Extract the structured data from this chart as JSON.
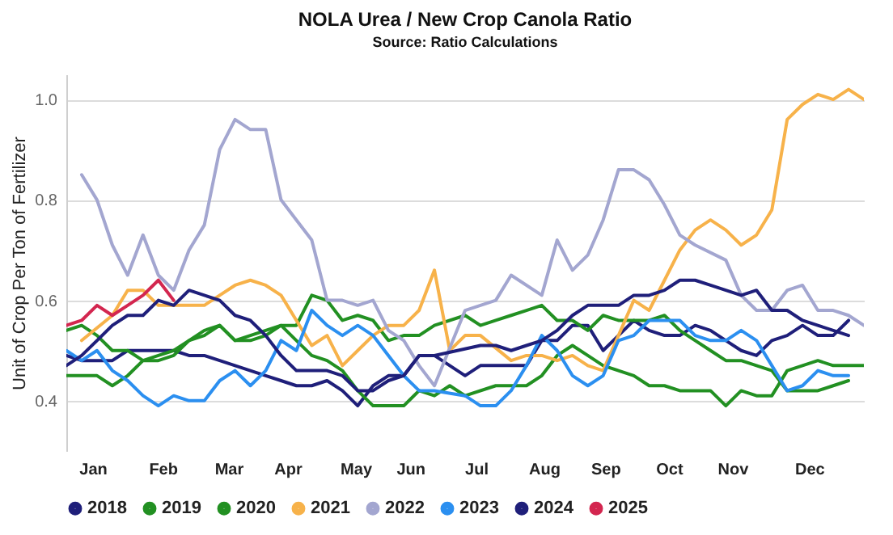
{
  "chart_data": {
    "type": "line",
    "title": "NOLA Urea / New Crop Canola Ratio",
    "subtitle": "Source: Ratio Calculations",
    "ylabel": "Unit of Crop Per Ton of Fertilizer",
    "xlim": [
      "--01-01",
      "--12-31"
    ],
    "ylim": [
      0.3,
      1.05
    ],
    "yticks": [
      0.4,
      0.6,
      0.8,
      {
        "value": 1,
        "label": "1.0"
      }
    ],
    "xticks": [
      {
        "value": "--01-13",
        "label": "Jan"
      },
      {
        "value": "--02-14",
        "label": "Feb"
      },
      {
        "value": "--03-16",
        "label": "Mar"
      },
      {
        "value": "--04-12",
        "label": "Apr"
      },
      {
        "value": "--05-13",
        "label": "May"
      },
      {
        "value": "--06-07",
        "label": "Jun"
      },
      {
        "value": "--07-07",
        "label": "Jul"
      },
      {
        "value": "--08-07",
        "label": "Aug"
      },
      {
        "value": "--09-04",
        "label": "Sep"
      },
      {
        "value": "--10-03",
        "label": "Oct"
      },
      {
        "value": "--11-01",
        "label": "Nov"
      },
      {
        "value": "--12-06",
        "label": "Dec"
      }
    ],
    "grid": "y",
    "legend": "bottom",
    "line_style": "solid",
    "series": [
      {
        "name": "2018",
        "color": "#1f1f7a",
        "x": [
          "--01-01",
          "--01-08",
          "--01-15",
          "--01-22",
          "--01-29",
          "--02-05",
          "--02-12",
          "--02-19",
          "--02-26",
          "--03-05",
          "--03-12",
          "--03-19",
          "--03-26",
          "--04-02",
          "--04-09",
          "--04-16",
          "--04-23",
          "--04-30",
          "--05-07",
          "--05-14",
          "--05-21",
          "--05-28",
          "--06-04",
          "--06-11",
          "--06-18",
          "--07-02",
          "--07-09",
          "--07-23",
          "--07-30",
          "--08-06",
          "--08-13",
          "--08-20",
          "--08-27",
          "--09-03",
          "--09-10",
          "--09-17",
          "--09-24",
          "--10-01",
          "--10-08",
          "--10-15",
          "--10-22",
          "--10-29",
          "--11-05",
          "--11-12",
          "--11-19",
          "--11-26",
          "--12-03",
          "--12-10",
          "--12-17",
          "--12-24"
        ],
        "values": [
          0.49,
          0.48,
          0.48,
          0.48,
          0.5,
          0.5,
          0.5,
          0.5,
          0.49,
          0.49,
          0.48,
          0.47,
          0.46,
          0.45,
          0.44,
          0.43,
          0.43,
          0.44,
          0.42,
          0.39,
          0.43,
          0.45,
          0.45,
          0.49,
          0.49,
          0.45,
          0.47,
          0.47,
          0.47,
          0.52,
          0.52,
          0.55,
          0.55,
          0.5,
          0.53,
          0.56,
          0.54,
          0.53,
          0.53,
          0.55,
          0.54,
          0.52,
          0.5,
          0.49,
          0.52,
          0.53,
          0.55,
          0.53,
          0.53,
          0.56
        ]
      },
      {
        "name": "2019",
        "color": "#229022",
        "x": [
          "--01-01",
          "--01-08",
          "--01-15",
          "--01-22",
          "--01-29",
          "--02-05",
          "--02-12",
          "--02-19",
          "--02-26",
          "--03-05",
          "--03-12",
          "--03-19",
          "--03-26",
          "--04-02",
          "--04-09",
          "--04-16",
          "--04-23",
          "--04-30",
          "--05-07",
          "--05-14",
          "--05-21",
          "--05-28",
          "--06-04",
          "--06-11",
          "--06-18",
          "--07-02",
          "--07-09",
          "--07-16",
          "--07-23",
          "--07-30",
          "--08-06",
          "--08-13",
          "--08-20",
          "--08-27",
          "--09-03",
          "--09-10",
          "--09-17",
          "--09-24",
          "--10-01",
          "--10-08",
          "--10-15",
          "--10-22",
          "--10-29",
          "--11-05",
          "--11-12",
          "--11-19",
          "--11-26",
          "--12-03",
          "--12-10",
          "--12-17",
          "--12-24"
        ],
        "values": [
          0.54,
          0.55,
          0.53,
          0.5,
          0.5,
          0.48,
          0.49,
          0.5,
          0.52,
          0.54,
          0.55,
          0.52,
          0.52,
          0.53,
          0.55,
          0.55,
          0.61,
          0.6,
          0.56,
          0.57,
          0.56,
          0.52,
          0.53,
          0.53,
          0.55,
          0.57,
          0.55,
          0.56,
          0.57,
          0.58,
          0.59,
          0.56,
          0.56,
          0.54,
          0.57,
          0.56,
          0.56,
          0.56,
          0.57,
          0.54,
          0.52,
          0.5,
          0.48,
          0.48,
          0.47,
          0.46,
          0.42,
          0.42,
          0.42,
          0.43,
          0.44
        ]
      },
      {
        "name": "2020",
        "color": "#229022",
        "x": [
          "--01-01",
          "--01-08",
          "--01-15",
          "--01-22",
          "--01-29",
          "--02-05",
          "--02-12",
          "--02-19",
          "--02-26",
          "--03-05",
          "--03-12",
          "--03-19",
          "--03-26",
          "--04-02",
          "--04-09",
          "--04-16",
          "--04-23",
          "--04-30",
          "--05-07",
          "--05-14",
          "--05-21",
          "--05-28",
          "--06-04",
          "--06-11",
          "--06-18",
          "--06-25",
          "--07-02",
          "--07-16",
          "--07-30",
          "--08-06",
          "--08-13",
          "--08-20",
          "--08-27",
          "--09-03",
          "--09-10",
          "--09-17",
          "--09-24",
          "--10-01",
          "--10-08",
          "--10-22",
          "--10-29",
          "--11-05",
          "--11-12",
          "--11-19",
          "--11-26",
          "--12-03",
          "--12-10",
          "--12-17",
          "--12-31"
        ],
        "values": [
          0.45,
          0.45,
          0.45,
          0.43,
          0.45,
          0.48,
          0.48,
          0.49,
          0.52,
          0.53,
          0.55,
          0.52,
          0.53,
          0.54,
          0.55,
          0.52,
          0.49,
          0.48,
          0.46,
          0.42,
          0.39,
          0.39,
          0.39,
          0.42,
          0.41,
          0.43,
          0.41,
          0.43,
          0.43,
          0.45,
          0.49,
          0.51,
          0.49,
          0.47,
          0.46,
          0.45,
          0.43,
          0.43,
          0.42,
          0.42,
          0.39,
          0.42,
          0.41,
          0.41,
          0.46,
          0.47,
          0.48,
          0.47,
          0.47
        ]
      },
      {
        "name": "2021",
        "color": "#f7b24a",
        "x": [
          "--01-08",
          "--01-22",
          "--01-29",
          "--02-05",
          "--02-12",
          "--02-19",
          "--03-05",
          "--03-12",
          "--03-19",
          "--03-26",
          "--04-02",
          "--04-09",
          "--04-16",
          "--04-23",
          "--04-30",
          "--05-07",
          "--05-14",
          "--05-21",
          "--05-28",
          "--06-04",
          "--06-11",
          "--06-18",
          "--06-25",
          "--07-02",
          "--07-09",
          "--07-23",
          "--07-30",
          "--08-06",
          "--08-13",
          "--08-20",
          "--08-27",
          "--09-03",
          "--09-10",
          "--09-17",
          "--09-24",
          "--10-01",
          "--10-08",
          "--10-15",
          "--10-22",
          "--10-29",
          "--11-05",
          "--11-12",
          "--11-19",
          "--11-26",
          "--12-03",
          "--12-10",
          "--12-17",
          "--12-24",
          "--12-31"
        ],
        "values": [
          0.52,
          0.57,
          0.62,
          0.62,
          0.59,
          0.59,
          0.59,
          0.61,
          0.63,
          0.64,
          0.63,
          0.61,
          0.56,
          0.51,
          0.53,
          0.47,
          0.5,
          0.53,
          0.55,
          0.55,
          0.58,
          0.66,
          0.5,
          0.53,
          0.53,
          0.48,
          0.49,
          0.49,
          0.48,
          0.49,
          0.47,
          0.46,
          0.53,
          0.6,
          0.58,
          0.64,
          0.7,
          0.74,
          0.76,
          0.74,
          0.71,
          0.73,
          0.78,
          0.96,
          0.99,
          1.01,
          1.0,
          1.02,
          1.0
        ]
      },
      {
        "name": "2022",
        "color": "#a3a6d0",
        "x": [
          "--01-08",
          "--01-15",
          "--01-22",
          "--01-29",
          "--02-05",
          "--02-12",
          "--02-19",
          "--02-26",
          "--03-05",
          "--03-12",
          "--03-19",
          "--03-26",
          "--04-02",
          "--04-09",
          "--04-16",
          "--04-23",
          "--04-30",
          "--05-07",
          "--05-14",
          "--05-21",
          "--05-28",
          "--06-04",
          "--06-11",
          "--06-18",
          "--07-02",
          "--07-16",
          "--07-23",
          "--08-06",
          "--08-13",
          "--08-20",
          "--08-27",
          "--09-03",
          "--09-10",
          "--09-17",
          "--09-24",
          "--10-01",
          "--10-08",
          "--10-15",
          "--10-29",
          "--11-05",
          "--11-12",
          "--11-19",
          "--11-26",
          "--12-03",
          "--12-10",
          "--12-17",
          "--12-24",
          "--12-31"
        ],
        "values": [
          0.85,
          0.8,
          0.71,
          0.65,
          0.73,
          0.65,
          0.62,
          0.7,
          0.75,
          0.9,
          0.96,
          0.94,
          0.94,
          0.8,
          0.76,
          0.72,
          0.6,
          0.6,
          0.59,
          0.6,
          0.54,
          0.52,
          0.47,
          0.43,
          0.58,
          0.6,
          0.65,
          0.61,
          0.72,
          0.66,
          0.69,
          0.76,
          0.86,
          0.86,
          0.84,
          0.79,
          0.73,
          0.71,
          0.68,
          0.61,
          0.58,
          0.58,
          0.62,
          0.63,
          0.58,
          0.58,
          0.57,
          0.55
        ]
      },
      {
        "name": "2023",
        "color": "#2b8ff0",
        "x": [
          "--01-01",
          "--01-08",
          "--01-15",
          "--01-22",
          "--01-29",
          "--02-05",
          "--02-12",
          "--02-19",
          "--02-26",
          "--03-05",
          "--03-12",
          "--03-19",
          "--03-26",
          "--04-02",
          "--04-09",
          "--04-16",
          "--04-23",
          "--04-30",
          "--05-07",
          "--05-14",
          "--05-21",
          "--05-28",
          "--06-04",
          "--06-11",
          "--06-18",
          "--07-02",
          "--07-09",
          "--07-16",
          "--07-23",
          "--07-30",
          "--08-06",
          "--08-13",
          "--08-20",
          "--08-27",
          "--09-03",
          "--09-10",
          "--09-17",
          "--09-24",
          "--10-01",
          "--10-08",
          "--10-15",
          "--10-22",
          "--10-29",
          "--11-05",
          "--11-12",
          "--11-19",
          "--11-26",
          "--12-03",
          "--12-10",
          "--12-17",
          "--12-24"
        ],
        "values": [
          0.5,
          0.48,
          0.5,
          0.46,
          0.44,
          0.41,
          0.39,
          0.41,
          0.4,
          0.4,
          0.44,
          0.46,
          0.43,
          0.46,
          0.52,
          0.5,
          0.58,
          0.55,
          0.53,
          0.55,
          0.53,
          0.49,
          0.45,
          0.42,
          0.42,
          0.41,
          0.39,
          0.39,
          0.42,
          0.47,
          0.53,
          0.5,
          0.45,
          0.43,
          0.45,
          0.52,
          0.53,
          0.56,
          0.56,
          0.56,
          0.53,
          0.52,
          0.52,
          0.54,
          0.52,
          0.47,
          0.42,
          0.43,
          0.46,
          0.45,
          0.45
        ]
      },
      {
        "name": "2024",
        "color": "#1f1f7a",
        "x": [
          "--01-01",
          "--01-08",
          "--01-15",
          "--01-22",
          "--01-29",
          "--02-05",
          "--02-12",
          "--02-19",
          "--02-26",
          "--03-05",
          "--03-12",
          "--03-19",
          "--03-26",
          "--04-02",
          "--04-09",
          "--04-16",
          "--04-23",
          "--04-30",
          "--05-07",
          "--05-14",
          "--05-21",
          "--05-28",
          "--06-04",
          "--06-11",
          "--06-18",
          "--07-09",
          "--07-16",
          "--07-23",
          "--07-30",
          "--08-06",
          "--08-13",
          "--08-20",
          "--08-27",
          "--09-10",
          "--09-17",
          "--09-24",
          "--10-01",
          "--10-08",
          "--10-15",
          "--10-22",
          "--10-29",
          "--11-05",
          "--11-12",
          "--11-19",
          "--11-26",
          "--12-03",
          "--12-10",
          "--12-17",
          "--12-24"
        ],
        "values": [
          0.47,
          0.49,
          0.52,
          0.55,
          0.57,
          0.57,
          0.6,
          0.59,
          0.62,
          0.61,
          0.6,
          0.57,
          0.56,
          0.53,
          0.49,
          0.46,
          0.46,
          0.46,
          0.45,
          0.42,
          0.42,
          0.44,
          0.45,
          0.49,
          0.49,
          0.51,
          0.51,
          0.5,
          0.51,
          0.52,
          0.54,
          0.57,
          0.59,
          0.59,
          0.61,
          0.61,
          0.62,
          0.64,
          0.64,
          0.63,
          0.62,
          0.61,
          0.62,
          0.58,
          0.58,
          0.56,
          0.55,
          0.54,
          0.53
        ]
      },
      {
        "name": "2025",
        "color": "#d3264f",
        "x": [
          "--01-01",
          "--01-08",
          "--01-15",
          "--01-22",
          "--01-29",
          "--02-05",
          "--02-12",
          "--02-19"
        ],
        "values": [
          0.55,
          0.56,
          0.59,
          0.57,
          0.59,
          0.61,
          0.64,
          0.6
        ]
      }
    ]
  }
}
